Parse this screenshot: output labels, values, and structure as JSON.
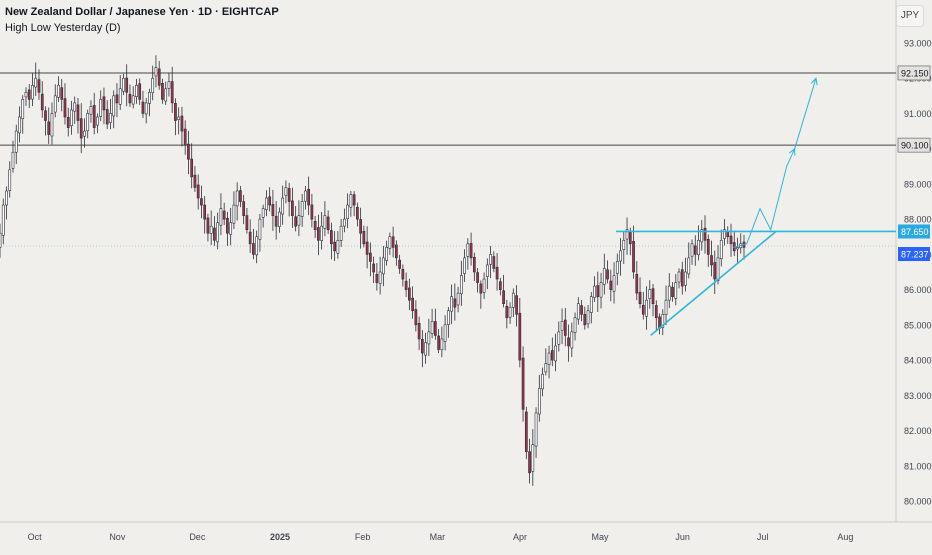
{
  "header": {
    "symbol_title": "New Zealand Dollar / Japanese Yen · 1D · EIGHTCAP",
    "indicator": "High Low Yesterday (D)",
    "currency_button": "JPY"
  },
  "chart_data": {
    "type": "candlestick",
    "title": "New Zealand Dollar / Japanese Yen · 1D · EIGHTCAP",
    "y_axis_labels": [
      80.0,
      81.0,
      82.0,
      83.0,
      84.0,
      85.0,
      86.0,
      87.0,
      88.0,
      89.0,
      90.0,
      91.0,
      92.0,
      93.0
    ],
    "ylim": [
      79.5,
      93.5
    ],
    "x_tick_labels": [
      {
        "label": "Oct",
        "date": "2024-10-01",
        "bold": false
      },
      {
        "label": "Nov",
        "date": "2024-11-01",
        "bold": false
      },
      {
        "label": "Dec",
        "date": "2024-12-01",
        "bold": false
      },
      {
        "label": "2025",
        "date": "2025-01-01",
        "bold": true
      },
      {
        "label": "Feb",
        "date": "2025-02-01",
        "bold": false
      },
      {
        "label": "Mar",
        "date": "2025-03-01",
        "bold": false
      },
      {
        "label": "Apr",
        "date": "2025-04-01",
        "bold": false
      },
      {
        "label": "May",
        "date": "2025-05-01",
        "bold": false
      },
      {
        "label": "Jun",
        "date": "2025-06-01",
        "bold": false
      },
      {
        "label": "Jul",
        "date": "2025-07-01",
        "bold": false
      },
      {
        "label": "Aug",
        "date": "2025-08-01",
        "bold": false
      }
    ],
    "xlim": [
      "2024-09-18",
      "2025-08-20"
    ],
    "grid": false,
    "colors": {
      "up": "#ffffff",
      "down": "#a03045",
      "wick": "#2a2e39",
      "outline": "#2a2e39",
      "trend": "#2ab7d9",
      "level": "#444444"
    },
    "horizontal_levels": [
      {
        "price": 92.15,
        "label": "92.150"
      },
      {
        "price": 90.1,
        "label": "90.100"
      }
    ],
    "resistance": {
      "price": 87.65,
      "label": "87.650",
      "start": "2025-05-07",
      "end": "2025-08-20"
    },
    "last_price": {
      "price": 87.237,
      "label": "87.237"
    },
    "trendline": {
      "start": [
        "2025-05-20",
        84.7
      ],
      "end": [
        "2025-07-06",
        87.65
      ]
    },
    "projection_path": [
      [
        "2025-06-20",
        87.2
      ],
      [
        "2025-06-25",
        87.3
      ],
      [
        "2025-06-30",
        88.3
      ],
      [
        "2025-07-04",
        87.7
      ],
      [
        "2025-07-10",
        89.5
      ],
      [
        "2025-07-13",
        90.0
      ]
    ],
    "projection_path_2": [
      [
        "2025-07-13",
        90.0
      ],
      [
        "2025-07-21",
        92.0
      ]
    ],
    "price_series": {
      "start_date": "2024-09-18",
      "end_date": "2025-06-24",
      "closes": [
        87.6,
        88.4,
        88.8,
        89.4,
        89.9,
        90.5,
        90.9,
        91.4,
        91.6,
        91.4,
        91.8,
        92.0,
        91.6,
        91.1,
        90.8,
        90.4,
        91.0,
        91.5,
        91.8,
        91.4,
        90.9,
        90.6,
        91.1,
        91.3,
        90.8,
        90.3,
        90.5,
        91.0,
        91.2,
        90.6,
        90.9,
        91.4,
        91.1,
        90.7,
        91.0,
        91.5,
        91.3,
        91.7,
        92.0,
        91.6,
        91.3,
        91.5,
        91.8,
        91.4,
        91.0,
        91.3,
        91.6,
        92.0,
        92.3,
        91.8,
        91.4,
        91.7,
        91.9,
        91.3,
        90.8,
        90.9,
        90.5,
        90.1,
        89.7,
        89.2,
        88.9,
        88.6,
        88.4,
        88.0,
        87.6,
        87.8,
        87.4,
        87.9,
        88.3,
        88.0,
        87.6,
        87.9,
        88.4,
        88.8,
        88.5,
        88.1,
        87.7,
        87.3,
        87.0,
        87.5,
        88.0,
        88.3,
        88.6,
        88.4,
        88.1,
        87.8,
        88.2,
        88.6,
        88.9,
        88.5,
        88.1,
        87.8,
        88.1,
        88.5,
        88.8,
        88.4,
        88.0,
        87.7,
        87.4,
        87.8,
        88.1,
        87.7,
        87.3,
        87.1,
        87.4,
        87.8,
        88.0,
        88.4,
        88.7,
        88.4,
        88.0,
        87.6,
        87.3,
        87.0,
        86.8,
        86.5,
        86.2,
        86.5,
        86.9,
        87.2,
        87.5,
        87.2,
        86.9,
        86.6,
        86.3,
        86.0,
        85.7,
        85.4,
        85.0,
        84.6,
        84.2,
        84.5,
        84.8,
        85.1,
        84.7,
        84.3,
        84.6,
        85.0,
        85.4,
        85.8,
        85.5,
        85.9,
        86.4,
        86.9,
        87.3,
        86.9,
        86.5,
        86.2,
        85.9,
        86.3,
        86.7,
        87.0,
        86.6,
        86.3,
        86.0,
        85.6,
        85.2,
        85.5,
        85.9,
        85.3,
        84.0,
        82.6,
        81.4,
        80.8,
        81.6,
        82.5,
        83.2,
        83.6,
        83.9,
        84.2,
        84.0,
        84.4,
        84.8,
        85.1,
        84.7,
        84.4,
        84.8,
        85.2,
        85.6,
        85.3,
        85.0,
        85.4,
        85.8,
        86.1,
        85.8,
        86.2,
        86.6,
        86.3,
        86.0,
        86.4,
        86.8,
        87.1,
        87.4,
        87.7,
        87.3,
        86.5,
        85.9,
        85.6,
        85.3,
        85.7,
        86.0,
        85.6,
        85.2,
        84.9,
        85.3,
        85.7,
        86.1,
        85.8,
        86.2,
        86.5,
        86.1,
        86.5,
        86.9,
        87.3,
        87.0,
        87.4,
        87.7,
        87.4,
        87.0,
        86.7,
        86.3,
        86.9,
        87.4,
        87.7,
        87.5,
        87.3,
        87.1,
        87.2,
        87.3,
        87.2
      ]
    }
  }
}
